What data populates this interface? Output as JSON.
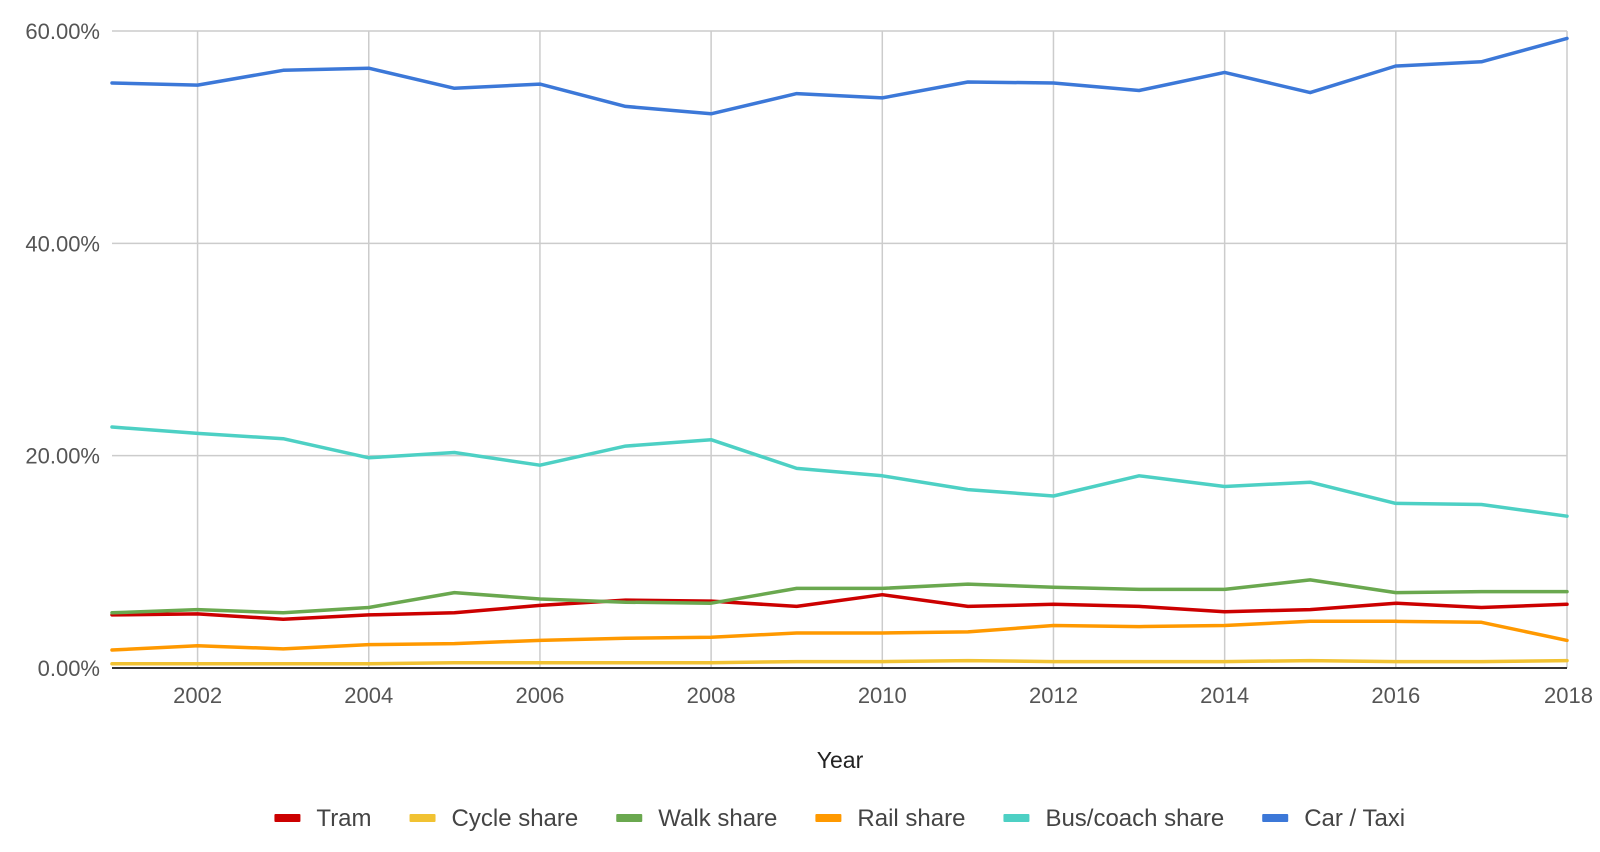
{
  "chart_data": {
    "type": "line",
    "title": "",
    "xlabel": "Year",
    "ylabel": "",
    "x": [
      2001,
      2002,
      2003,
      2004,
      2005,
      2006,
      2007,
      2008,
      2009,
      2010,
      2011,
      2012,
      2013,
      2014,
      2015,
      2016,
      2017,
      2018
    ],
    "x_ticks": [
      "2002",
      "2004",
      "2006",
      "2008",
      "2010",
      "2012",
      "2014",
      "2016",
      "2018"
    ],
    "y_ticks": [
      "0.00%",
      "20.00%",
      "40.00%",
      "60.00%"
    ],
    "ylim": [
      0,
      60
    ],
    "grid": true,
    "legend_position": "bottom",
    "series": [
      {
        "name": "Tram",
        "color": "#cc0000",
        "values": [
          5.0,
          5.1,
          4.6,
          5.0,
          5.2,
          5.9,
          6.4,
          6.3,
          5.8,
          6.9,
          5.8,
          6.0,
          5.8,
          5.3,
          5.5,
          6.1,
          5.7,
          6.0
        ]
      },
      {
        "name": "Cycle share",
        "color": "#f1c232",
        "values": [
          0.4,
          0.4,
          0.4,
          0.4,
          0.5,
          0.5,
          0.5,
          0.5,
          0.6,
          0.6,
          0.7,
          0.6,
          0.6,
          0.6,
          0.7,
          0.6,
          0.6,
          0.7
        ]
      },
      {
        "name": "Walk share",
        "color": "#6aa84f",
        "values": [
          5.2,
          5.5,
          5.2,
          5.7,
          7.1,
          6.5,
          6.2,
          6.1,
          7.5,
          7.5,
          7.9,
          7.6,
          7.4,
          7.4,
          8.3,
          7.1,
          7.2,
          7.2
        ]
      },
      {
        "name": "Rail share",
        "color": "#ff9900",
        "values": [
          1.7,
          2.1,
          1.8,
          2.2,
          2.3,
          2.6,
          2.8,
          2.9,
          3.3,
          3.3,
          3.4,
          4.0,
          3.9,
          4.0,
          4.4,
          4.4,
          4.3,
          2.6
        ]
      },
      {
        "name": "Bus/coach share",
        "color": "#4dd0c4",
        "values": [
          22.7,
          22.1,
          21.6,
          19.8,
          20.3,
          19.1,
          20.9,
          21.5,
          18.8,
          18.1,
          16.8,
          16.2,
          18.1,
          17.1,
          17.5,
          15.5,
          15.4,
          14.3
        ]
      },
      {
        "name": "Car / Taxi",
        "color": "#3c78d8",
        "values": [
          55.1,
          54.9,
          56.3,
          56.5,
          54.6,
          55.0,
          52.9,
          52.2,
          54.1,
          53.7,
          55.2,
          55.1,
          54.4,
          56.1,
          54.2,
          56.7,
          57.1,
          59.3
        ]
      }
    ]
  }
}
